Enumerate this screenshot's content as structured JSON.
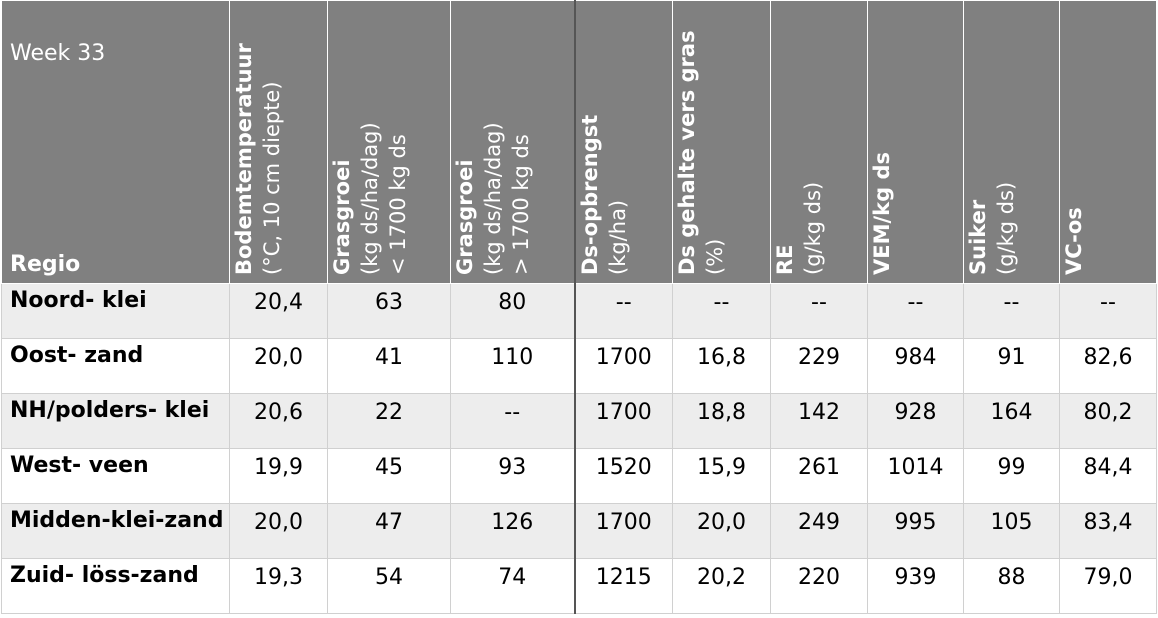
{
  "header": {
    "week": "Week 33",
    "region_label": "Regio",
    "columns": [
      {
        "title": "Bodemtemperatuur",
        "lines": [
          "(°C, 10 cm diepte)"
        ]
      },
      {
        "title": "Grasgroei",
        "lines": [
          "(kg ds/ha/dag)",
          "< 1700 kg ds"
        ]
      },
      {
        "title": "Grasgroei",
        "lines": [
          "(kg ds/ha/dag)",
          "> 1700 kg ds"
        ]
      },
      {
        "title": "Ds-opbrengst",
        "lines": [
          "(kg/ha)"
        ]
      },
      {
        "title": "Ds gehalte vers gras",
        "lines": [
          "(%)"
        ]
      },
      {
        "title": "RE",
        "lines": [
          "(g/kg ds)"
        ]
      },
      {
        "title": "VEM/kg ds",
        "lines": []
      },
      {
        "title": "Suiker",
        "lines": [
          "(g/kg ds)"
        ]
      },
      {
        "title": "VC-os",
        "lines": []
      }
    ]
  },
  "table": {
    "rows": [
      {
        "region": "Noord- klei",
        "cells": [
          "20,4",
          "63",
          "80",
          "--",
          "--",
          "--",
          "--",
          "--",
          "--"
        ]
      },
      {
        "region": "Oost- zand",
        "cells": [
          "20,0",
          "41",
          "110",
          "1700",
          "16,8",
          "229",
          "984",
          "91",
          "82,6"
        ]
      },
      {
        "region": "NH/polders- klei",
        "cells": [
          "20,6",
          "22",
          "--",
          "1700",
          "18,8",
          "142",
          "928",
          "164",
          "80,2"
        ]
      },
      {
        "region": "West- veen",
        "cells": [
          "19,9",
          "45",
          "93",
          "1520",
          "15,9",
          "261",
          "1014",
          "99",
          "84,4"
        ]
      },
      {
        "region": "Midden-klei-zand",
        "cells": [
          "20,0",
          "47",
          "126",
          "1700",
          "20,0",
          "249",
          "995",
          "105",
          "83,4"
        ]
      },
      {
        "region": "Zuid- löss-zand",
        "cells": [
          "19,3",
          "54",
          "74",
          "1215",
          "20,2",
          "220",
          "939",
          "88",
          "79,0"
        ]
      }
    ]
  }
}
